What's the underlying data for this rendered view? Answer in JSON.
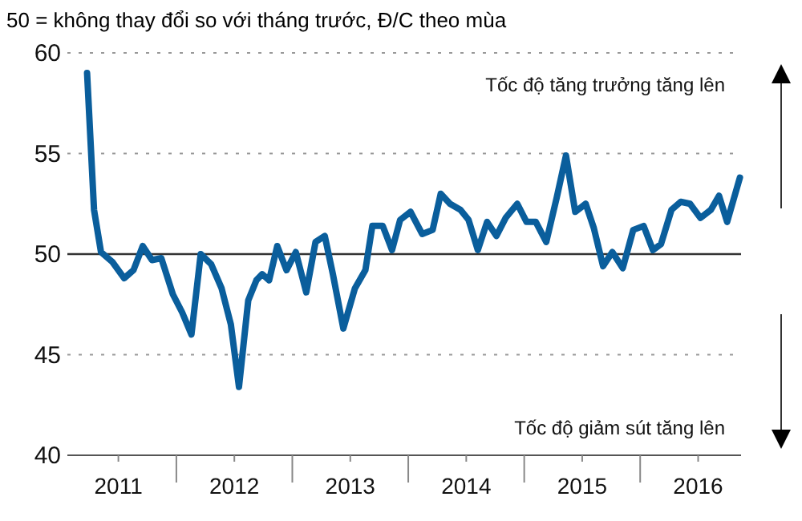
{
  "chart_data": {
    "type": "line",
    "title": "50 = không thay đổi so với tháng trước, Đ/C theo mùa",
    "annotations": [
      "Tốc độ tăng trưởng tăng lên",
      "Tốc độ giảm sút tăng lên"
    ],
    "x": [
      2011.23,
      2011.29,
      2011.35,
      2011.45,
      2011.55,
      2011.63,
      2011.71,
      2011.79,
      2011.87,
      2011.97,
      2012.05,
      2012.13,
      2012.21,
      2012.3,
      2012.39,
      2012.47,
      2012.54,
      2012.62,
      2012.69,
      2012.74,
      2012.8,
      2012.87,
      2012.95,
      2013.03,
      2013.12,
      2013.2,
      2013.28,
      2013.35,
      2013.44,
      2013.54,
      2013.63,
      2013.69,
      2013.78,
      2013.86,
      2013.93,
      2014.02,
      2014.12,
      2014.21,
      2014.28,
      2014.36,
      2014.45,
      2014.52,
      2014.6,
      2014.68,
      2014.76,
      2014.84,
      2014.94,
      2015.02,
      2015.1,
      2015.19,
      2015.28,
      2015.36,
      2015.44,
      2015.53,
      2015.6,
      2015.68,
      2015.76,
      2015.85,
      2015.94,
      2016.03,
      2016.11,
      2016.18,
      2016.27,
      2016.35,
      2016.43,
      2016.52,
      2016.61,
      2016.68,
      2016.75,
      2016.86
    ],
    "series": [
      {
        "color": "#0a5e9c",
        "values": [
          59.0,
          52.2,
          50.1,
          49.6,
          48.8,
          49.2,
          50.4,
          49.7,
          49.8,
          48.0,
          47.1,
          46.0,
          50.0,
          49.5,
          48.3,
          46.5,
          43.4,
          47.7,
          48.7,
          49.0,
          48.7,
          50.4,
          49.2,
          50.1,
          48.1,
          50.6,
          50.9,
          49.0,
          46.3,
          48.3,
          49.2,
          51.4,
          51.4,
          50.2,
          51.7,
          52.1,
          51.0,
          51.2,
          53.0,
          52.5,
          52.2,
          51.7,
          50.2,
          51.6,
          50.9,
          51.8,
          52.5,
          51.6,
          51.6,
          50.6,
          52.8,
          54.9,
          52.1,
          52.5,
          51.3,
          49.4,
          50.1,
          49.3,
          51.2,
          51.4,
          50.2,
          50.5,
          52.2,
          52.6,
          52.5,
          51.8,
          52.2,
          52.9,
          51.6,
          53.8
        ]
      }
    ],
    "xlim": [
      2011.06,
      2016.87
    ],
    "xticks": [
      {
        "value": 2011.5,
        "label": "2011"
      },
      {
        "value": 2012.5,
        "label": "2012"
      },
      {
        "value": 2013.5,
        "label": "2013"
      },
      {
        "value": 2014.5,
        "label": "2014"
      },
      {
        "value": 2015.5,
        "label": "2015"
      },
      {
        "value": 2016.5,
        "label": "2016"
      }
    ],
    "ylim": [
      40,
      60
    ],
    "yticks": [
      40,
      45,
      50,
      55,
      60
    ],
    "grid": "y",
    "ref_lines": [
      {
        "axis": "y",
        "value": 50,
        "color": "#333333"
      }
    ],
    "marker": "none",
    "line_style": "solid"
  }
}
